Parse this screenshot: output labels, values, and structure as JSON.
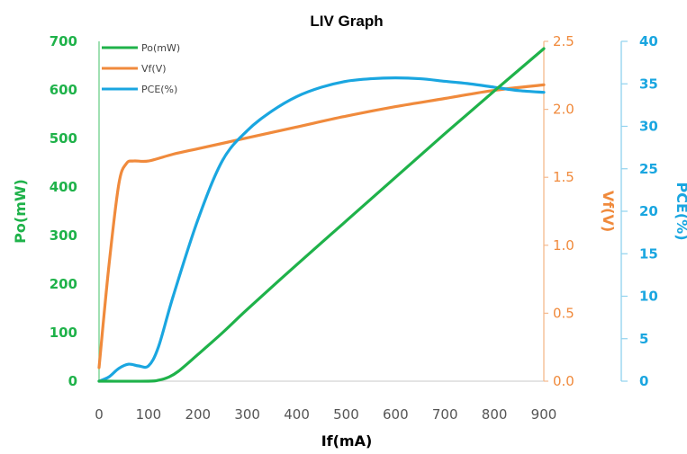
{
  "chart_data": {
    "type": "line",
    "title": "LIV Graph",
    "xlabel": "If(mA)",
    "xlim": [
      0,
      900
    ],
    "xticks": [
      "0",
      "100",
      "200",
      "300",
      "400",
      "500",
      "600",
      "700",
      "800",
      "900"
    ],
    "axes": {
      "po": {
        "label": "Po(mW)",
        "lim": [
          0,
          700
        ],
        "ticks": [
          "0",
          "100",
          "200",
          "300",
          "400",
          "500",
          "600",
          "700"
        ],
        "color": "#1fb24a",
        "side": "left"
      },
      "vf": {
        "label": "Vf(V)",
        "lim": [
          0,
          2.5
        ],
        "ticks": [
          "0.0",
          "0.5",
          "1.0",
          "1.5",
          "2.0",
          "2.5"
        ],
        "color": "#f08a3c",
        "side": "right"
      },
      "pce": {
        "label": "PCE(%)",
        "lim": [
          0,
          40
        ],
        "ticks": [
          "0",
          "5",
          "10",
          "15",
          "20",
          "25",
          "30",
          "35",
          "40"
        ],
        "color": "#1aa6e0",
        "side": "right-outer"
      }
    },
    "legend_position": "top-left",
    "grid": false,
    "series": [
      {
        "name": "Po(mW)",
        "axis": "po",
        "color": "#1fb24a",
        "x": [
          0,
          100,
          120,
          140,
          160,
          200,
          250,
          300,
          400,
          500,
          600,
          700,
          800,
          900
        ],
        "y": [
          0,
          0,
          2,
          8,
          20,
          55,
          100,
          148,
          240,
          330,
          420,
          510,
          598,
          685
        ]
      },
      {
        "name": "Vf(V)",
        "axis": "vf",
        "color": "#f08a3c",
        "x": [
          0,
          20,
          40,
          55,
          70,
          100,
          150,
          200,
          300,
          400,
          500,
          600,
          700,
          800,
          900
        ],
        "y": [
          0.1,
          0.85,
          1.45,
          1.6,
          1.62,
          1.62,
          1.67,
          1.71,
          1.79,
          1.87,
          1.95,
          2.02,
          2.08,
          2.14,
          2.18
        ]
      },
      {
        "name": "PCE(%)",
        "axis": "pce",
        "color": "#1aa6e0",
        "x": [
          0,
          20,
          40,
          60,
          80,
          100,
          120,
          150,
          200,
          250,
          300,
          350,
          400,
          450,
          500,
          550,
          600,
          650,
          700,
          750,
          800,
          850,
          900
        ],
        "y": [
          0,
          0.5,
          1.5,
          2.0,
          1.8,
          1.8,
          4,
          10,
          19,
          26,
          29.5,
          31.8,
          33.5,
          34.6,
          35.3,
          35.6,
          35.7,
          35.6,
          35.3,
          35,
          34.6,
          34.2,
          34.0
        ]
      }
    ]
  }
}
